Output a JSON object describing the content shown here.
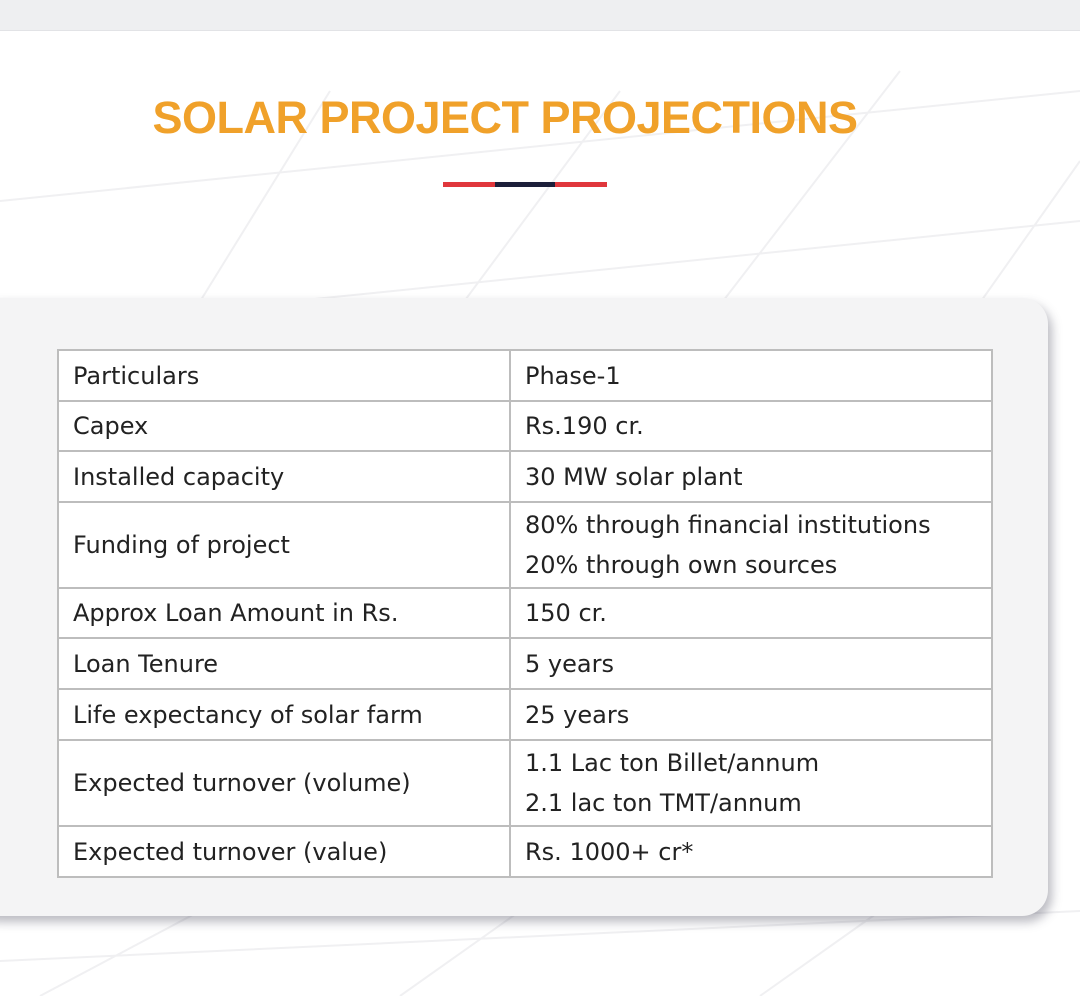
{
  "header": {
    "title": "SOLAR PROJECT PROJECTIONS"
  },
  "table": {
    "rows": [
      [
        [
          "Particulars"
        ],
        [
          "Phase-1"
        ]
      ],
      [
        [
          "Capex"
        ],
        [
          "Rs.190 cr."
        ]
      ],
      [
        [
          "Installed capacity"
        ],
        [
          "30 MW solar plant"
        ]
      ],
      [
        [
          "Funding of project"
        ],
        [
          "80% through financial institutions",
          "20% through own sources"
        ]
      ],
      [
        [
          "Approx Loan Amount in Rs."
        ],
        [
          "150 cr."
        ]
      ],
      [
        [
          "Loan Tenure"
        ],
        [
          "5 years"
        ]
      ],
      [
        [
          "Life expectancy of solar farm"
        ],
        [
          "25 years"
        ]
      ],
      [
        [
          "Expected turnover (volume)"
        ],
        [
          "1.1 Lac ton Billet/annum",
          "2.1 lac ton TMT/annum"
        ]
      ],
      [
        [
          "Expected turnover (value)"
        ],
        [
          "Rs. 1000+ cr*"
        ]
      ]
    ]
  }
}
